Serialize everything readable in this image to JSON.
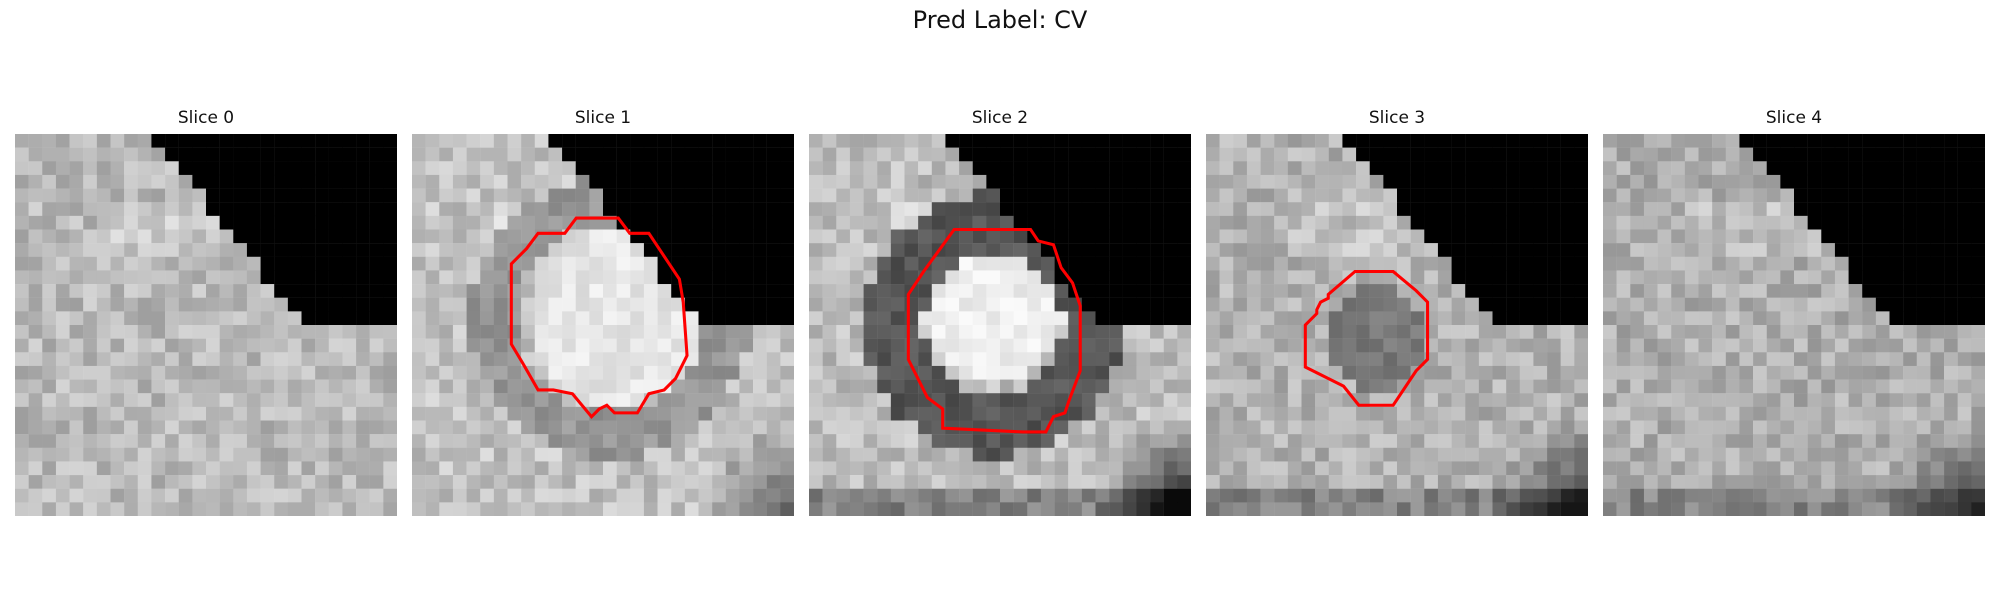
{
  "figure": {
    "suptitle": "Pred Label: CV"
  },
  "panels": [
    {
      "title": "Slice 0",
      "has_contour": false
    },
    {
      "title": "Slice 1",
      "has_contour": true
    },
    {
      "title": "Slice 2",
      "has_contour": true
    },
    {
      "title": "Slice 3",
      "has_contour": true
    },
    {
      "title": "Slice 4",
      "has_contour": false
    }
  ],
  "colors": {
    "contour": "#ff0000",
    "background": "#000000"
  }
}
